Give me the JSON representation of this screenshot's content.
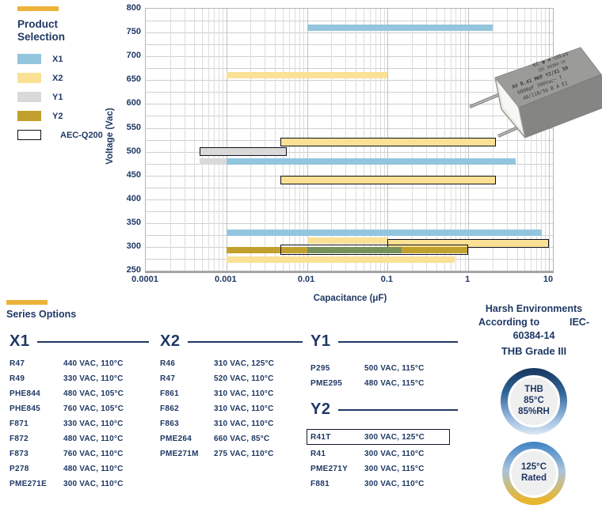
{
  "colors": {
    "navy": "#1F3864",
    "accent_gold": "#EDB23A",
    "X1": "#93C5DE",
    "X2": "#FAE195",
    "Y1": "#D9D9D9",
    "Y2": "#C2A02E",
    "olive_overlap": "#78915A",
    "aec_outline": "#10101C"
  },
  "legend": {
    "title": "Product Selection",
    "items": [
      {
        "label": "X1",
        "color_key": "X1",
        "outlined": false
      },
      {
        "label": "X2",
        "color_key": "X2",
        "outlined": false
      },
      {
        "label": "Y1",
        "color_key": "Y1",
        "outlined": false
      },
      {
        "label": "Y2",
        "color_key": "Y2",
        "outlined": false
      },
      {
        "label": "AEC-Q200",
        "color_key": "aec",
        "outlined": true
      }
    ]
  },
  "chart_data": {
    "type": "bar",
    "orientation": "horizontal-range",
    "xlabel": "Capacitance (μF)",
    "ylabel": "Voltage (Vac)",
    "x_scale": "log",
    "xlim": [
      0.0001,
      10
    ],
    "ylim": [
      250,
      800
    ],
    "grid": true,
    "x_ticks": [
      "0.0001",
      "0.001",
      "0.01",
      "0.1",
      "1",
      "10"
    ],
    "y_ticks": [
      800,
      750,
      700,
      650,
      600,
      550,
      500,
      450,
      400,
      350,
      300,
      250
    ],
    "bars": [
      {
        "series": "X1",
        "voltage": 760,
        "cap_min": 0.01,
        "cap_max": 2.0,
        "color_key": "X1",
        "aec_q200": false,
        "dy": 0
      },
      {
        "series": "X2",
        "voltage": 660,
        "cap_min": 0.001,
        "cap_max": 0.1,
        "color_key": "X2",
        "aec_q200": false,
        "dy": 0
      },
      {
        "series": "X2",
        "voltage": 520,
        "cap_min": 0.0047,
        "cap_max": 2.2,
        "color_key": "X2",
        "aec_q200": true,
        "dy": 0
      },
      {
        "series": "Y1",
        "voltage": 500,
        "cap_min": 0.00047,
        "cap_max": 0.0056,
        "color_key": "Y1",
        "aec_q200": true,
        "dy": 0
      },
      {
        "series": "Y1",
        "voltage": 480,
        "cap_min": 0.00047,
        "cap_max": 0.001,
        "color_key": "Y1",
        "aec_q200": false,
        "dy": 0
      },
      {
        "series": "X1",
        "voltage": 480,
        "cap_min": 0.001,
        "cap_max": 3.9,
        "color_key": "X1",
        "aec_q200": false,
        "dy": 0
      },
      {
        "series": "X2",
        "voltage": 440,
        "cap_min": 0.0047,
        "cap_max": 2.2,
        "color_key": "X2",
        "aec_q200": true,
        "dy": 0
      },
      {
        "series": "X1",
        "voltage": 330,
        "cap_min": 0.001,
        "cap_max": 8.2,
        "color_key": "X1",
        "aec_q200": false,
        "dy": 0
      },
      {
        "series": "X2",
        "voltage": 310,
        "cap_min": 0.01,
        "cap_max": 0.1,
        "color_key": "X2",
        "aec_q200": false,
        "dy": -2
      },
      {
        "series": "X2",
        "voltage": 310,
        "cap_min": 0.1,
        "cap_max": 10,
        "color_key": "X2",
        "aec_q200": true,
        "dy": 2
      },
      {
        "series": "Y2",
        "voltage": 300,
        "cap_min": 0.001,
        "cap_max": 1.0,
        "color_key": "Y2",
        "aec_q200": false,
        "dy": 4
      },
      {
        "series": "X1 over Y2",
        "voltage": 300,
        "cap_min": 0.01,
        "cap_max": 0.15,
        "color_key": "olive_overlap",
        "aec_q200": false,
        "dy": 4
      },
      {
        "series": "Y2",
        "voltage": 300,
        "cap_min": 0.0047,
        "cap_max": 1.0,
        "color_key": "none",
        "aec_q200": true,
        "dy": 4,
        "outline_only": true
      },
      {
        "series": "X2",
        "voltage": 275,
        "cap_min": 0.001,
        "cap_max": 0.68,
        "color_key": "X2",
        "aec_q200": false,
        "dy": 1
      }
    ]
  },
  "capacitor": {
    "description": "gray box film capacitor with two leads",
    "markings": [
      "KC ◉ ⊕ cULus",
      "IEC 60384-14",
      "AV R.41 MKP Y2/X1 SH",
      "6800pF 300Vac~ T",
      "40/110/56  B  A  E1"
    ]
  },
  "series_options": {
    "title": "Series Options",
    "columns": [
      {
        "name": "X1",
        "parts": [
          {
            "part": "R47",
            "spec": "440 VAC, 110°C"
          },
          {
            "part": "R49",
            "spec": "330 VAC, 110°C"
          },
          {
            "part": "PHE844",
            "spec": "480 VAC, 105°C"
          },
          {
            "part": "PHE845",
            "spec": "760 VAC, 105°C"
          },
          {
            "part": "F871",
            "spec": "330 VAC, 110°C"
          },
          {
            "part": "F872",
            "spec": "480 VAC, 110°C"
          },
          {
            "part": "F873",
            "spec": "760 VAC, 110°C"
          },
          {
            "part": "P278",
            "spec": "480 VAC, 110°C"
          },
          {
            "part": "PME271E",
            "spec": "300 VAC, 110°C"
          }
        ]
      },
      {
        "name": "X2",
        "parts": [
          {
            "part": "R46",
            "spec": "310 VAC, 125°C"
          },
          {
            "part": "R47",
            "spec": "520 VAC, 110°C"
          },
          {
            "part": "F861",
            "spec": "310 VAC, 110°C"
          },
          {
            "part": "F862",
            "spec": "310 VAC, 110°C"
          },
          {
            "part": "F863",
            "spec": "310 VAC, 110°C"
          },
          {
            "part": "PME264",
            "spec": "660 VAC, 85°C"
          },
          {
            "part": "PME271M",
            "spec": "275 VAC, 110°C"
          }
        ]
      },
      {
        "name": "Y1",
        "parts": [
          {
            "part": "P295",
            "spec": "500 VAC, 115°C"
          },
          {
            "part": "PME295",
            "spec": "480 VAC, 115°C"
          }
        ]
      },
      {
        "name": "Y2",
        "parts": [
          {
            "part": "R41T",
            "spec": "300 VAC, 125°C",
            "boxed": true
          },
          {
            "part": "R41",
            "spec": "300 VAC, 110°C"
          },
          {
            "part": "PME271Y",
            "spec": "300 VAC, 115°C"
          },
          {
            "part": "F881",
            "spec": "300 VAC, 110°C"
          }
        ]
      }
    ]
  },
  "harsh": {
    "title_line1": "Harsh Environments",
    "title_line2_left": "According to",
    "title_line2_right": "IEC-",
    "title_line3": "60384-14",
    "title_line4": "THB Grade III",
    "badges": [
      {
        "lines": [
          "THB",
          "85°C",
          "85%RH"
        ]
      },
      {
        "lines": [
          "125°C",
          "Rated"
        ]
      }
    ]
  }
}
